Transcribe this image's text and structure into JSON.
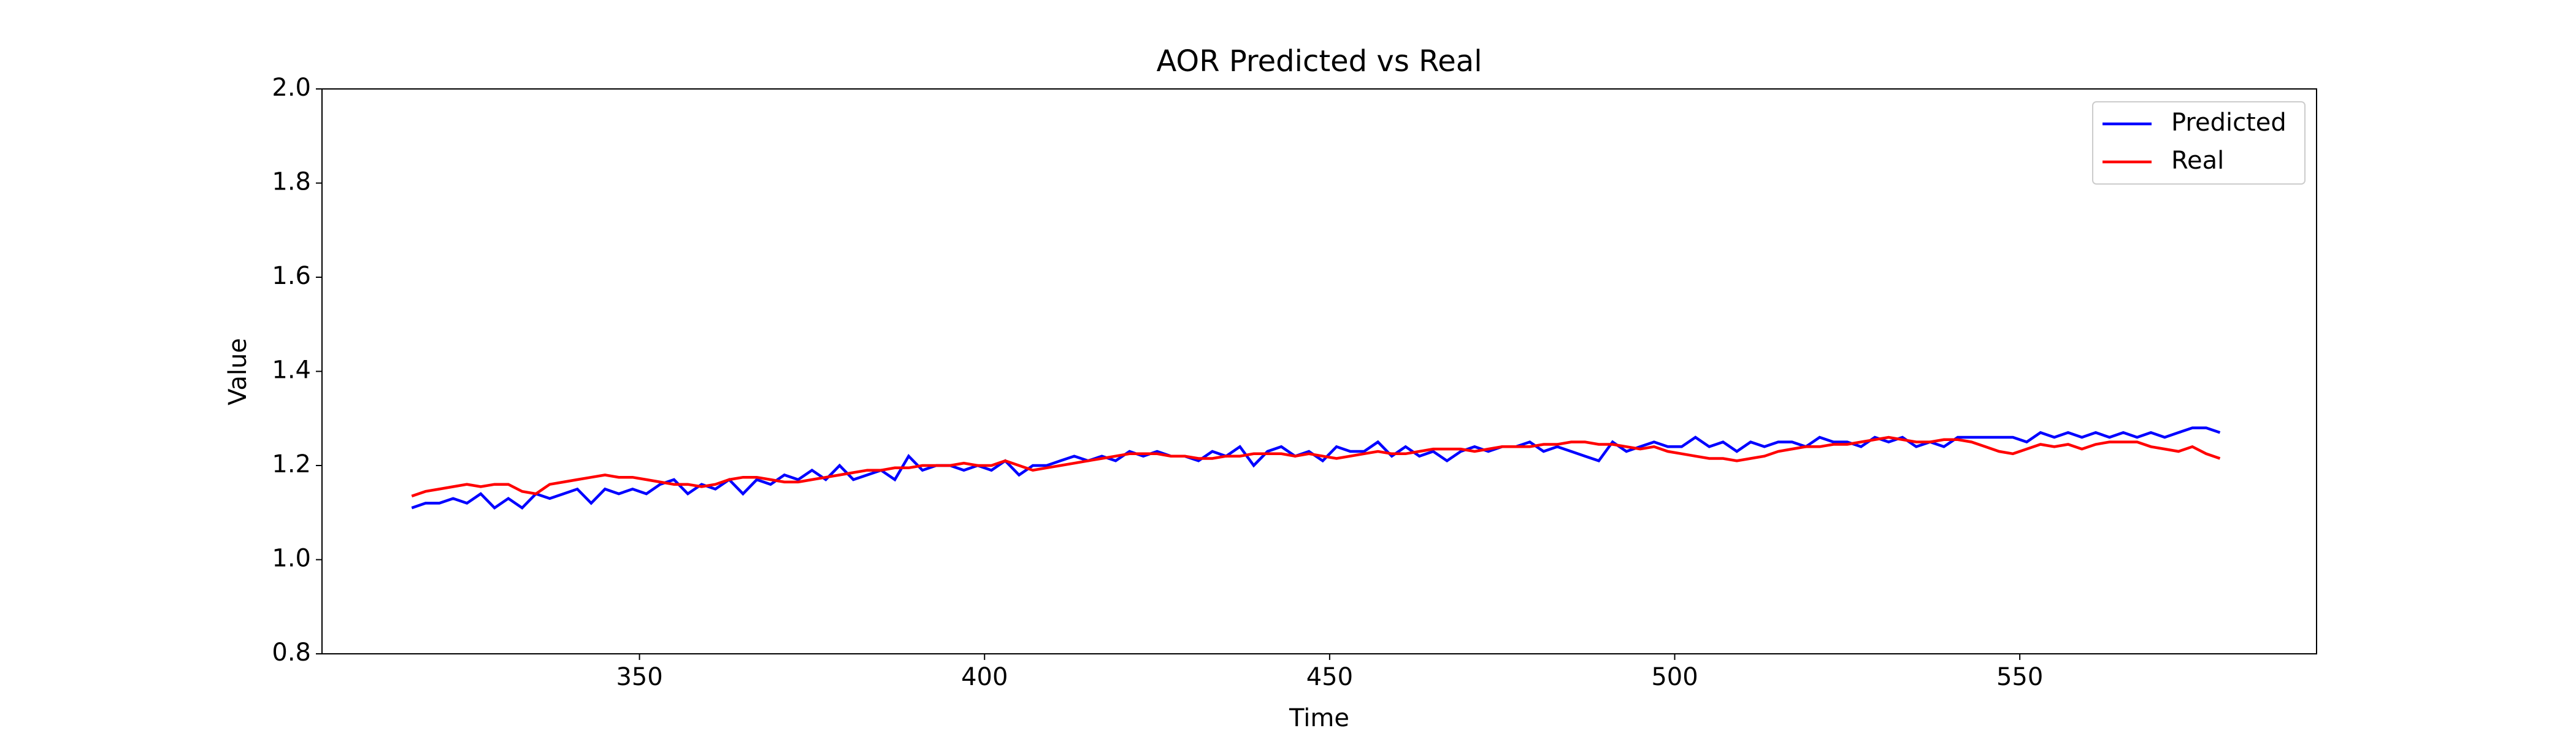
{
  "chart_data": {
    "type": "line",
    "title": "AOR Predicted vs Real",
    "x_label": "Time",
    "y_label": "Value",
    "x": [
      317,
      319,
      321,
      323,
      325,
      327,
      329,
      331,
      333,
      335,
      337,
      339,
      341,
      343,
      345,
      347,
      349,
      351,
      353,
      355,
      357,
      359,
      361,
      363,
      365,
      367,
      369,
      371,
      373,
      375,
      377,
      379,
      381,
      383,
      385,
      387,
      389,
      391,
      393,
      395,
      397,
      399,
      401,
      403,
      405,
      407,
      409,
      411,
      413,
      415,
      417,
      419,
      421,
      423,
      425,
      427,
      429,
      431,
      433,
      435,
      437,
      439,
      441,
      443,
      445,
      447,
      449,
      451,
      453,
      455,
      457,
      459,
      461,
      463,
      465,
      467,
      469,
      471,
      473,
      475,
      477,
      479,
      481,
      483,
      485,
      487,
      489,
      491,
      493,
      495,
      497,
      499,
      501,
      503,
      505,
      507,
      509,
      511,
      513,
      515,
      517,
      519,
      521,
      523,
      525,
      527,
      529,
      531,
      533,
      535,
      537,
      539,
      541,
      543,
      545,
      547,
      549,
      551,
      553,
      555,
      557,
      559,
      561,
      563,
      565,
      567,
      569,
      571,
      573,
      575,
      577,
      579
    ],
    "series": [
      {
        "name": "Predicted",
        "color": "#0000ff",
        "values": [
          1.11,
          1.12,
          1.12,
          1.13,
          1.12,
          1.14,
          1.11,
          1.13,
          1.11,
          1.14,
          1.13,
          1.14,
          1.15,
          1.12,
          1.15,
          1.14,
          1.15,
          1.14,
          1.16,
          1.17,
          1.14,
          1.16,
          1.15,
          1.17,
          1.14,
          1.17,
          1.16,
          1.18,
          1.17,
          1.19,
          1.17,
          1.2,
          1.17,
          1.18,
          1.19,
          1.17,
          1.22,
          1.19,
          1.2,
          1.2,
          1.19,
          1.2,
          1.19,
          1.21,
          1.18,
          1.2,
          1.2,
          1.21,
          1.22,
          1.21,
          1.22,
          1.21,
          1.23,
          1.22,
          1.23,
          1.22,
          1.22,
          1.21,
          1.23,
          1.22,
          1.24,
          1.2,
          1.23,
          1.24,
          1.22,
          1.23,
          1.21,
          1.24,
          1.23,
          1.23,
          1.25,
          1.22,
          1.24,
          1.22,
          1.23,
          1.21,
          1.23,
          1.24,
          1.23,
          1.24,
          1.24,
          1.25,
          1.23,
          1.24,
          1.23,
          1.22,
          1.21,
          1.25,
          1.23,
          1.24,
          1.25,
          1.24,
          1.24,
          1.26,
          1.24,
          1.25,
          1.23,
          1.25,
          1.24,
          1.25,
          1.25,
          1.24,
          1.26,
          1.25,
          1.25,
          1.24,
          1.26,
          1.25,
          1.26,
          1.24,
          1.25,
          1.24,
          1.26,
          1.26,
          1.26,
          1.26,
          1.26,
          1.25,
          1.27,
          1.26,
          1.27,
          1.26,
          1.27,
          1.26,
          1.27,
          1.26,
          1.27,
          1.26,
          1.27,
          1.28,
          1.28,
          1.27
        ]
      },
      {
        "name": "Real",
        "color": "#ff0000",
        "values": [
          1.135,
          1.145,
          1.15,
          1.155,
          1.16,
          1.155,
          1.16,
          1.16,
          1.145,
          1.14,
          1.16,
          1.165,
          1.17,
          1.175,
          1.18,
          1.175,
          1.175,
          1.17,
          1.165,
          1.16,
          1.16,
          1.155,
          1.16,
          1.17,
          1.175,
          1.175,
          1.17,
          1.165,
          1.165,
          1.17,
          1.175,
          1.18,
          1.185,
          1.19,
          1.19,
          1.195,
          1.195,
          1.2,
          1.2,
          1.2,
          1.205,
          1.2,
          1.2,
          1.21,
          1.2,
          1.19,
          1.195,
          1.2,
          1.205,
          1.21,
          1.215,
          1.22,
          1.225,
          1.225,
          1.225,
          1.22,
          1.22,
          1.215,
          1.215,
          1.22,
          1.22,
          1.225,
          1.225,
          1.225,
          1.22,
          1.225,
          1.22,
          1.215,
          1.22,
          1.225,
          1.23,
          1.225,
          1.225,
          1.23,
          1.235,
          1.235,
          1.235,
          1.23,
          1.235,
          1.24,
          1.24,
          1.24,
          1.245,
          1.245,
          1.25,
          1.25,
          1.245,
          1.245,
          1.24,
          1.235,
          1.24,
          1.23,
          1.225,
          1.22,
          1.215,
          1.215,
          1.21,
          1.215,
          1.22,
          1.23,
          1.235,
          1.24,
          1.24,
          1.245,
          1.245,
          1.25,
          1.255,
          1.26,
          1.255,
          1.25,
          1.25,
          1.255,
          1.255,
          1.25,
          1.24,
          1.23,
          1.225,
          1.235,
          1.245,
          1.24,
          1.245,
          1.235,
          1.245,
          1.25,
          1.25,
          1.25,
          1.24,
          1.235,
          1.23,
          1.24,
          1.225,
          1.215
        ]
      }
    ],
    "xlim": [
      304,
      593
    ],
    "xticks": [
      350,
      400,
      450,
      500,
      550
    ],
    "ylim": [
      0.8,
      2.0
    ],
    "yticks": [
      0.8,
      {
        "value": 1.0,
        "label": "1.0"
      },
      1.2,
      1.4,
      1.6,
      1.8,
      {
        "value": 2.0,
        "label": "2.0"
      }
    ],
    "legend": "upper right"
  }
}
